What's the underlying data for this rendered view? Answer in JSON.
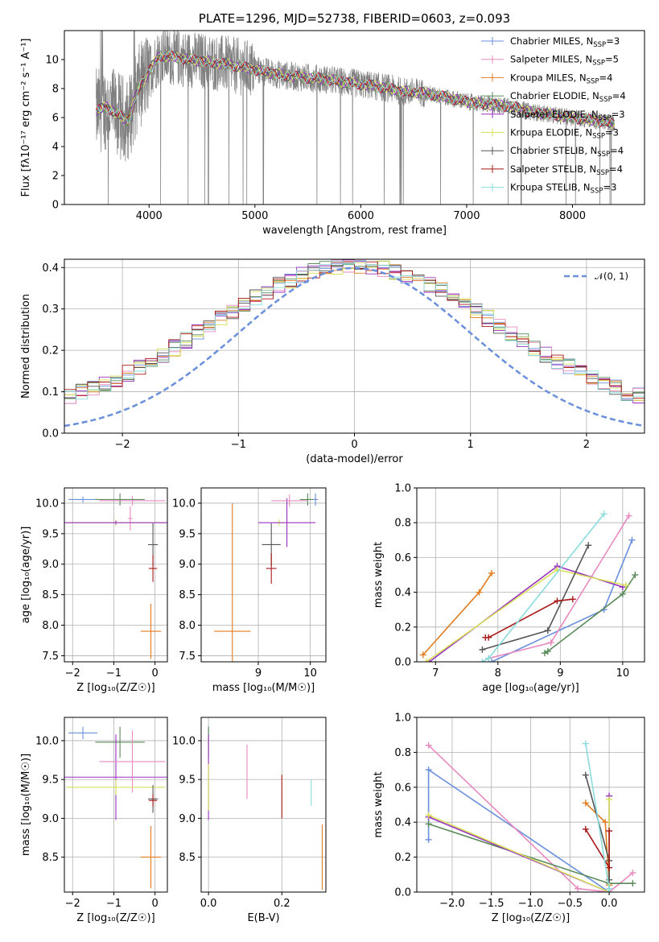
{
  "colors": {
    "Chabrier MILES": "#6a8fdc",
    "Salpeter MILES": "#e889c0",
    "Kroupa MILES": "#e07c1f",
    "Chabrier ELODIE": "#5a8a5a",
    "Salpeter ELODIE": "#9932c0",
    "Kroupa ELODIE": "#d8e25a",
    "Chabrier STELIB": "#555555",
    "Salpeter STELIB": "#a81818",
    "Kroupa STELIB": "#8adcdc",
    "data": "#808080"
  },
  "chart_data": [
    {
      "id": "spectrum",
      "type": "line",
      "title": "PLATE=1296, MJD=52738, FIBERID=0603, z=0.093",
      "xlabel": "wavelength [Angstrom, rest frame]",
      "ylabel": "Flux [fλ10⁻¹⁷ erg cm⁻² s⁻¹ A⁻¹]",
      "xlim": [
        3200,
        8680
      ],
      "ylim": [
        0,
        12
      ],
      "xticks": [
        4000,
        5000,
        6000,
        7000,
        8000
      ],
      "yticks": [
        0,
        2,
        4,
        6,
        8,
        10
      ],
      "grid": false,
      "legend_position": "right",
      "x": [
        3500,
        3600,
        3700,
        3800,
        3900,
        4000,
        4100,
        4200,
        4400,
        4600,
        4800,
        5000,
        5200,
        5400,
        5600,
        5800,
        6000,
        6200,
        6400,
        6600,
        6800,
        7000,
        7200,
        7400,
        7600,
        7800,
        8000,
        8200,
        8400
      ],
      "model_flux": [
        6.4,
        6.8,
        6.2,
        5.8,
        8.0,
        9.2,
        10.3,
        10.2,
        10.0,
        9.8,
        9.6,
        9.3,
        9.0,
        8.8,
        8.7,
        8.5,
        8.3,
        8.1,
        7.8,
        7.7,
        7.4,
        7.1,
        6.9,
        6.8,
        6.4,
        6.2,
        6.0,
        5.8,
        5.6
      ],
      "legend": [
        {
          "name": "Chabrier MILES",
          "n_ssp": "3"
        },
        {
          "name": "Salpeter MILES",
          "n_ssp": "5"
        },
        {
          "name": "Kroupa MILES",
          "n_ssp": "4"
        },
        {
          "name": "Chabrier ELODIE",
          "n_ssp": "4"
        },
        {
          "name": "Salpeter ELODIE",
          "n_ssp": "3"
        },
        {
          "name": "Kroupa ELODIE",
          "n_ssp": "3"
        },
        {
          "name": "Chabrier STELIB",
          "n_ssp": "4"
        },
        {
          "name": "Salpeter STELIB",
          "n_ssp": "4"
        },
        {
          "name": "Kroupa STELIB",
          "n_ssp": "3"
        }
      ]
    },
    {
      "id": "residuals",
      "type": "line",
      "xlabel": "(data-model)/error",
      "ylabel": "Normed distribution",
      "xlim": [
        -2.5,
        2.5
      ],
      "ylim": [
        0,
        0.42
      ],
      "xticks": [
        -2,
        -1,
        0,
        1,
        2
      ],
      "yticks": [
        0.0,
        0.1,
        0.2,
        0.3,
        0.4
      ],
      "grid": true,
      "legend_position": "top-right",
      "reference_label": "𝒩(0, 1)",
      "reference_curve": {
        "mean": 0,
        "sigma": 1
      }
    },
    {
      "id": "age-vs-Z",
      "type": "scatter",
      "xlabel": "Z [log₁₀(Z/Z☉)]",
      "ylabel": "age  [log₁₀(age/yr)]",
      "xlim": [
        -2.2,
        0.3
      ],
      "ylim": [
        7.4,
        10.25
      ],
      "xticks": [
        -2,
        -1,
        0
      ],
      "yticks": [
        7.5,
        8.0,
        8.5,
        9.0,
        9.5,
        10.0
      ],
      "grid": true,
      "points": [
        {
          "series": "Chabrier MILES",
          "x": -1.75,
          "xerr": 0.35,
          "y": 10.06,
          "yerr": 0.05
        },
        {
          "series": "Salpeter MILES",
          "x": -0.55,
          "xerr": 0.8,
          "y": 10.04,
          "yerr": 0.08
        },
        {
          "series": "Salpeter MILES",
          "x": -0.6,
          "xerr": 0.05,
          "y": 9.75,
          "yerr": 0.2
        },
        {
          "series": "Chabrier ELODIE",
          "x": -0.85,
          "xerr": 0.6,
          "y": 10.06,
          "yerr": 0.1
        },
        {
          "series": "Kroupa ELODIE",
          "x": -0.95,
          "xerr": 1.2,
          "y": 9.68,
          "yerr": 0.05
        },
        {
          "series": "Salpeter ELODIE",
          "x": -0.95,
          "xerr": 1.25,
          "y": 9.68,
          "yerr": 0.03
        },
        {
          "series": "Chabrier STELIB",
          "x": -0.05,
          "xerr": 0.12,
          "y": 9.32,
          "yerr": 0.35
        },
        {
          "series": "Salpeter STELIB",
          "x": -0.05,
          "xerr": 0.1,
          "y": 8.93,
          "yerr": 0.22
        },
        {
          "series": "Kroupa MILES",
          "x": -0.1,
          "xerr": 0.25,
          "y": 7.9,
          "yerr": 0.45
        }
      ]
    },
    {
      "id": "age-vs-mass",
      "type": "scatter",
      "xlabel": "mass [log₁₀(M/M☉)]",
      "xlim": [
        7.9,
        10.3
      ],
      "ylim": [
        7.4,
        10.25
      ],
      "xticks": [
        9,
        10
      ],
      "yticks": [
        7.5,
        8.0,
        8.5,
        9.0,
        9.5,
        10.0
      ],
      "grid": true,
      "points": [
        {
          "series": "Kroupa MILES",
          "x": 8.5,
          "xerr": 0.35,
          "y": 7.9,
          "yerr": 2.1
        },
        {
          "series": "Chabrier STELIB",
          "x": 9.25,
          "xerr": 0.18,
          "y": 9.32,
          "yerr": 0.35
        },
        {
          "series": "Salpeter STELIB",
          "x": 9.25,
          "xerr": 0.1,
          "y": 8.93,
          "yerr": 0.25
        },
        {
          "series": "Kroupa ELODIE",
          "x": 9.4,
          "xerr": 0.1,
          "y": 9.68,
          "yerr": 0.05
        },
        {
          "series": "Salpeter ELODIE",
          "x": 9.55,
          "xerr": 0.55,
          "y": 9.68,
          "yerr": 0.4
        },
        {
          "series": "Salpeter MILES",
          "x": 9.6,
          "xerr": 0.35,
          "y": 10.04,
          "yerr": 0.1
        },
        {
          "series": "Chabrier ELODIE",
          "x": 9.95,
          "xerr": 0.15,
          "y": 10.06,
          "yerr": 0.1
        },
        {
          "series": "Chabrier MILES",
          "x": 10.1,
          "xerr": 0.05,
          "y": 10.06,
          "yerr": 0.1
        }
      ]
    },
    {
      "id": "massweight-vs-age",
      "type": "line",
      "xlabel": "age  [log₁₀(age/yr)]",
      "ylabel": "mass weight",
      "xlim": [
        6.7,
        10.35
      ],
      "ylim": [
        0,
        1.0
      ],
      "xticks": [
        7,
        8,
        9,
        10
      ],
      "yticks": [
        0.0,
        0.2,
        0.4,
        0.6,
        0.8,
        1.0
      ],
      "grid": true,
      "series": [
        {
          "name": "Chabrier MILES",
          "x": [
            7.9,
            9.7,
            10.15
          ],
          "y": [
            0.0,
            0.3,
            0.7
          ]
        },
        {
          "name": "Salpeter MILES",
          "x": [
            7.85,
            8.85,
            10.1
          ],
          "y": [
            0.02,
            0.11,
            0.84
          ]
        },
        {
          "name": "Kroupa MILES",
          "x": [
            6.8,
            7.7,
            7.9
          ],
          "y": [
            0.04,
            0.4,
            0.51
          ]
        },
        {
          "name": "Chabrier ELODIE",
          "x": [
            8.75,
            8.8,
            10.0,
            10.2
          ],
          "y": [
            0.05,
            0.06,
            0.39,
            0.5
          ]
        },
        {
          "name": "Salpeter ELODIE",
          "x": [
            6.9,
            8.95,
            10.0
          ],
          "y": [
            0.0,
            0.55,
            0.43
          ]
        },
        {
          "name": "Kroupa ELODIE",
          "x": [
            6.85,
            8.95,
            10.05
          ],
          "y": [
            0.0,
            0.53,
            0.44
          ]
        },
        {
          "name": "Chabrier STELIB",
          "x": [
            7.75,
            8.8,
            9.45
          ],
          "y": [
            0.07,
            0.18,
            0.67
          ]
        },
        {
          "name": "Salpeter STELIB",
          "x": [
            7.8,
            7.85,
            8.95,
            9.2
          ],
          "y": [
            0.14,
            0.14,
            0.35,
            0.36
          ]
        },
        {
          "name": "Kroupa STELIB",
          "x": [
            7.75,
            7.85,
            9.7
          ],
          "y": [
            0.0,
            0.02,
            0.85
          ]
        }
      ]
    },
    {
      "id": "mass-vs-Z",
      "type": "scatter",
      "xlabel": "Z [log₁₀(Z/Z☉)]",
      "ylabel": "mass [log₁₀(M/M☉)]",
      "xlim": [
        -2.2,
        0.3
      ],
      "ylim": [
        8.05,
        10.3
      ],
      "xticks": [
        -2,
        -1,
        0
      ],
      "yticks": [
        8.5,
        9.0,
        9.5,
        10.0
      ],
      "grid": true,
      "points": [
        {
          "series": "Chabrier MILES",
          "x": -1.75,
          "xerr": 0.35,
          "y": 10.1,
          "yerr": 0.08
        },
        {
          "series": "Chabrier ELODIE",
          "x": -0.85,
          "xerr": 0.6,
          "y": 9.98,
          "yerr": 0.2
        },
        {
          "series": "Salpeter ELODIE",
          "x": -0.95,
          "xerr": 1.25,
          "y": 9.53,
          "yerr": 0.55
        },
        {
          "series": "Salpeter MILES",
          "x": -0.55,
          "xerr": 0.8,
          "y": 9.73,
          "yerr": 0.4
        },
        {
          "series": "Kroupa ELODIE",
          "x": -0.95,
          "xerr": 1.2,
          "y": 9.4,
          "yerr": 0.1
        },
        {
          "series": "Chabrier STELIB",
          "x": -0.05,
          "xerr": 0.12,
          "y": 9.25,
          "yerr": 0.18
        },
        {
          "series": "Salpeter STELIB",
          "x": -0.05,
          "xerr": 0.1,
          "y": 9.23,
          "yerr": 0.08
        },
        {
          "series": "Kroupa MILES",
          "x": -0.1,
          "xerr": 0.25,
          "y": 8.5,
          "yerr": 0.4
        }
      ]
    },
    {
      "id": "mass-vs-ebv",
      "type": "scatter",
      "xlabel": "E(B-V)",
      "xlim": [
        -0.02,
        0.32
      ],
      "ylim": [
        8.05,
        10.3
      ],
      "xticks": [
        0.0,
        0.2
      ],
      "yticks": [
        8.5,
        9.0,
        9.5,
        10.0
      ],
      "grid": true,
      "points": [
        {
          "series": "Chabrier MILES",
          "x": 0.0,
          "y": 10.1,
          "yerr": 0.08
        },
        {
          "series": "Chabrier ELODIE",
          "x": 0.0,
          "y": 9.98,
          "yerr": 0.2
        },
        {
          "series": "Salpeter ELODIE",
          "x": 0.0,
          "y": 9.53,
          "yerr": 0.55
        },
        {
          "series": "Kroupa ELODIE",
          "x": 0.0,
          "y": 9.4,
          "yerr": 0.3
        },
        {
          "series": "Salpeter MILES",
          "x": 0.105,
          "y": 9.6,
          "yerr": 0.35
        },
        {
          "series": "Salpeter STELIB",
          "x": 0.2,
          "y": 9.28,
          "yerr": 0.28
        },
        {
          "series": "Kroupa STELIB",
          "x": 0.28,
          "y": 9.33,
          "yerr": 0.17
        },
        {
          "series": "Kroupa MILES",
          "x": 0.31,
          "y": 8.5,
          "yerr": 0.42
        }
      ]
    },
    {
      "id": "massweight-vs-Z",
      "type": "line",
      "xlabel": "Z [log₁₀(Z/Z☉)]",
      "ylabel": "mass weight",
      "xlim": [
        -2.45,
        0.45
      ],
      "ylim": [
        0,
        1.0
      ],
      "xticks": [
        -2.0,
        -1.5,
        -1.0,
        -0.5,
        0.0
      ],
      "yticks": [
        0.0,
        0.2,
        0.4,
        0.6,
        0.8,
        1.0
      ],
      "grid": true,
      "series": [
        {
          "name": "Chabrier MILES",
          "x": [
            -2.3,
            -2.3,
            0.0
          ],
          "y": [
            0.3,
            0.7,
            0.0
          ]
        },
        {
          "name": "Salpeter MILES",
          "x": [
            -2.3,
            -0.4,
            0.0,
            0.3
          ],
          "y": [
            0.84,
            0.02,
            0.0,
            0.11
          ]
        },
        {
          "name": "Kroupa MILES",
          "x": [
            -0.3,
            -0.05,
            0.0
          ],
          "y": [
            0.51,
            0.4,
            0.04
          ]
        },
        {
          "name": "Chabrier ELODIE",
          "x": [
            -2.3,
            0.0,
            0.3
          ],
          "y": [
            0.39,
            0.05,
            0.05
          ]
        },
        {
          "name": "Salpeter ELODIE",
          "x": [
            -2.3,
            0.0,
            0.0
          ],
          "y": [
            0.43,
            0.0,
            0.55
          ]
        },
        {
          "name": "Kroupa ELODIE",
          "x": [
            -2.3,
            0.0,
            0.0
          ],
          "y": [
            0.44,
            0.0,
            0.53
          ]
        },
        {
          "name": "Chabrier STELIB",
          "x": [
            -0.3,
            0.0,
            0.0
          ],
          "y": [
            0.67,
            0.18,
            0.07
          ]
        },
        {
          "name": "Salpeter STELIB",
          "x": [
            -0.3,
            0.0,
            0.0
          ],
          "y": [
            0.36,
            0.14,
            0.35
          ]
        },
        {
          "name": "Kroupa STELIB",
          "x": [
            -0.3,
            0.0,
            0.0
          ],
          "y": [
            0.85,
            0.02,
            0.0
          ]
        }
      ]
    }
  ]
}
